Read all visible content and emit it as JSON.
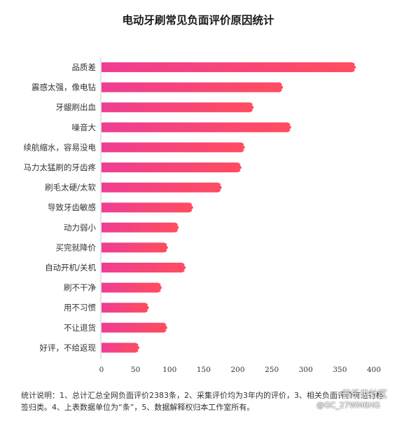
{
  "chart_data": {
    "type": "bar",
    "orientation": "horizontal",
    "title": "电动牙刷常见负面评价原因统计",
    "categories": [
      "品质差",
      "震感太强，像电钻",
      "牙龈刷出血",
      "噪音大",
      "续航缩水，容易没电",
      "马力太猛刷的牙齿疼",
      "刷毛太硬/太软",
      "导致牙齿敏感",
      "动力弱小",
      "买完就降价",
      "自动开机/关机",
      "刷不干净",
      "用不习惯",
      "不让退货",
      "好评，不给返现"
    ],
    "values": [
      372,
      265,
      222,
      277,
      209,
      204,
      175,
      133,
      112,
      96,
      122,
      87,
      68,
      95,
      54
    ],
    "xlim": [
      0,
      400
    ],
    "xticks": [
      0,
      50,
      100,
      150,
      200,
      250,
      300,
      350,
      400
    ],
    "grid": false,
    "colors": {
      "bar_start": "#ef3d93",
      "bar_end": "#ff4d5f"
    }
  },
  "footnote": "统计说明：1、总计汇总全网负面评价2383条，2、采集评价均为3年内的评价，3、相关负面评价有进行标签归类。4、上表数据单位为“条”，5、数据解释权归本工作室所有。",
  "watermark": {
    "line1": "普乐世社区",
    "line2": "@GC_27WM6HG"
  }
}
